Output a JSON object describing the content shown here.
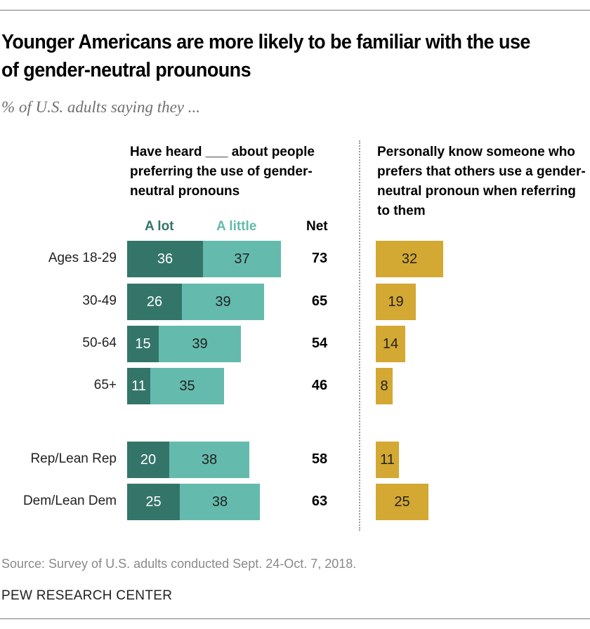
{
  "title": "Younger Americans are more likely to be familiar with the use of gender-neutral prounouns",
  "subtitle": "% of U.S. adults saying they ...",
  "source": "Source: Survey of U.S. adults conducted Sept. 24-Oct. 7, 2018.",
  "org": "PEW RESEARCH CENTER",
  "colors": {
    "a_lot": "#34756a",
    "a_little": "#64bbad",
    "know": "#d3a833"
  },
  "chart_data": [
    {
      "type": "bar",
      "stacked": true,
      "orientation": "horizontal",
      "title": "Have heard ___ about people preferring the use of gender-neutral pronouns",
      "categories": [
        "Ages 18-29",
        "30-49",
        "50-64",
        "65+",
        "Rep/Lean Rep",
        "Dem/Lean Dem"
      ],
      "series": [
        {
          "name": "A lot",
          "values": [
            36,
            26,
            15,
            11,
            20,
            25
          ]
        },
        {
          "name": "A little",
          "values": [
            37,
            39,
            39,
            35,
            38,
            38
          ]
        }
      ],
      "net_label": "Net",
      "net": [
        73,
        65,
        54,
        46,
        58,
        63
      ]
    },
    {
      "type": "bar",
      "orientation": "horizontal",
      "title": "Personally know someone who prefers that others use a gender-neutral pronoun when referring to them",
      "categories": [
        "Ages 18-29",
        "30-49",
        "50-64",
        "65+",
        "Rep/Lean Rep",
        "Dem/Lean Dem"
      ],
      "values": [
        32,
        19,
        14,
        8,
        11,
        25
      ]
    }
  ]
}
